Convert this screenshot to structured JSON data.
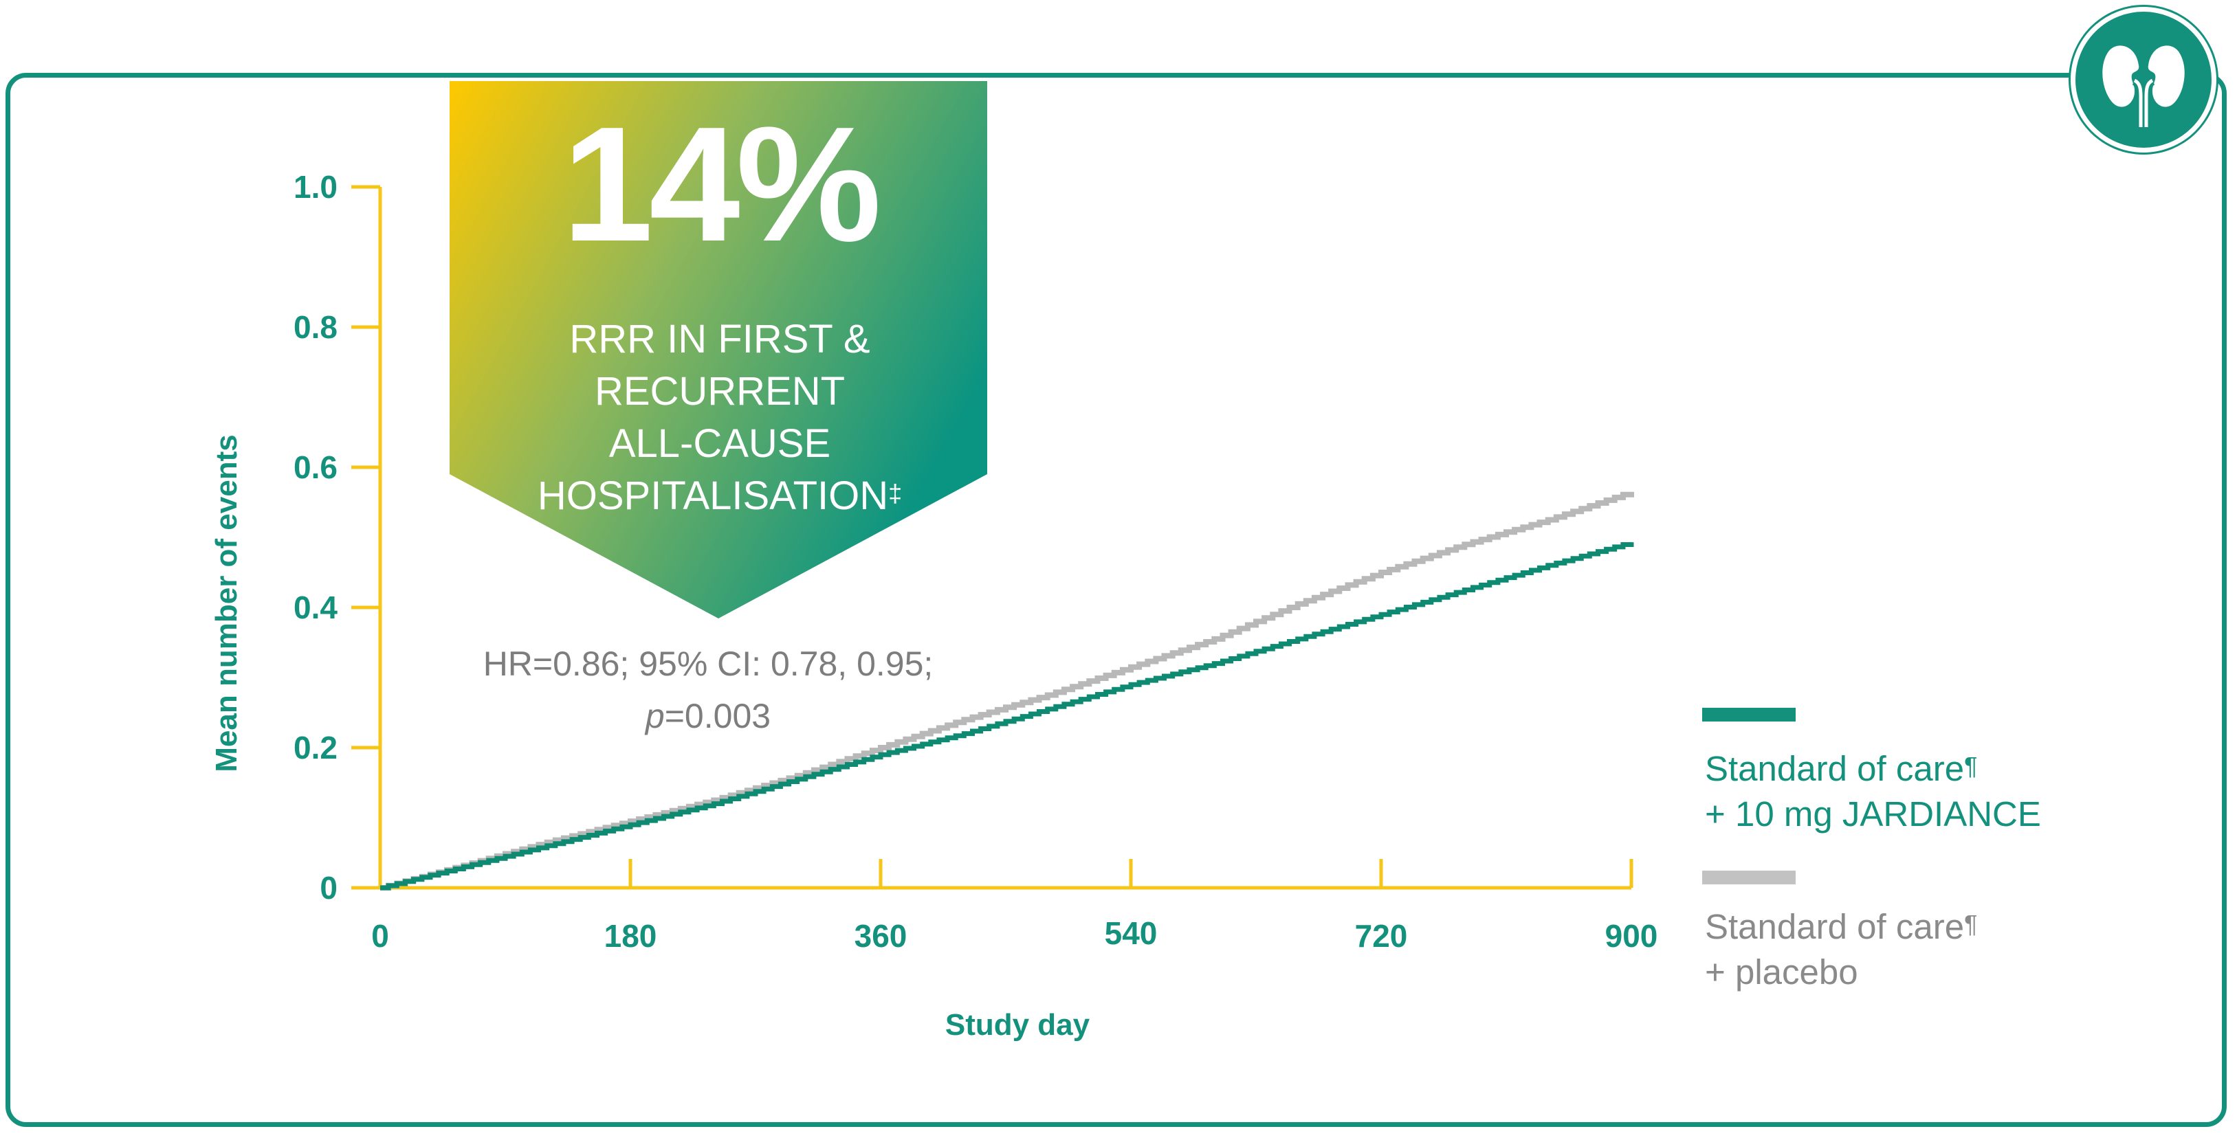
{
  "colors": {
    "frame": "#14917d",
    "axis": "#f5c518",
    "label": "#14917d",
    "series_jardiance": "#0e8a72",
    "series_placebo": "#b8b8b8",
    "banner_start": "#ffc800",
    "banner_end": "#0a9482"
  },
  "icon": {
    "name": "kidney-icon"
  },
  "banner": {
    "percent": "14%",
    "line1": "RRR IN FIRST &",
    "line2": "RECURRENT",
    "line3": "ALL-CAUSE",
    "line4": "HOSPITALISATION",
    "line4_sup": "‡"
  },
  "stats": {
    "hr_line": "HR=0.86; 95% CI: 0.78, 0.95;",
    "p_italic": "p",
    "p_value": "=0.003"
  },
  "legend": [
    {
      "line1": "Standard of care",
      "sup": "¶",
      "line2": "+ 10 mg JARDIANCE"
    },
    {
      "line1": "Standard of care",
      "sup": "¶",
      "line2": "+ placebo"
    }
  ],
  "chart_data": {
    "type": "line",
    "title": "",
    "xlabel": "Study day",
    "ylabel": "Mean number of events",
    "xlim": [
      0,
      900
    ],
    "ylim": [
      0,
      1.0
    ],
    "x_ticks": [
      0,
      180,
      360,
      540,
      720,
      900
    ],
    "x_tick_labels": [
      "0",
      "180",
      "360",
      "540",
      "720",
      "900"
    ],
    "y_ticks": [
      0,
      0.2,
      0.4,
      0.6,
      0.8,
      1.0
    ],
    "y_tick_labels": [
      "0",
      "0.2",
      "0.4",
      "0.6",
      "0.8",
      "1.0"
    ],
    "grid": false,
    "legend_position": "right",
    "series": [
      {
        "name": "Standard of care + 10 mg JARDIANCE",
        "x": [
          0,
          60,
          120,
          180,
          240,
          300,
          360,
          420,
          480,
          540,
          600,
          660,
          720,
          780,
          840,
          900
        ],
        "y": [
          0,
          0.03,
          0.06,
          0.09,
          0.12,
          0.155,
          0.19,
          0.22,
          0.255,
          0.29,
          0.32,
          0.355,
          0.39,
          0.425,
          0.46,
          0.493
        ]
      },
      {
        "name": "Standard of care + placebo",
        "x": [
          0,
          60,
          120,
          180,
          240,
          300,
          360,
          420,
          480,
          540,
          600,
          660,
          720,
          780,
          840,
          900
        ],
        "y": [
          0,
          0.032,
          0.065,
          0.095,
          0.125,
          0.16,
          0.2,
          0.24,
          0.275,
          0.315,
          0.355,
          0.405,
          0.45,
          0.49,
          0.525,
          0.565
        ]
      }
    ]
  }
}
